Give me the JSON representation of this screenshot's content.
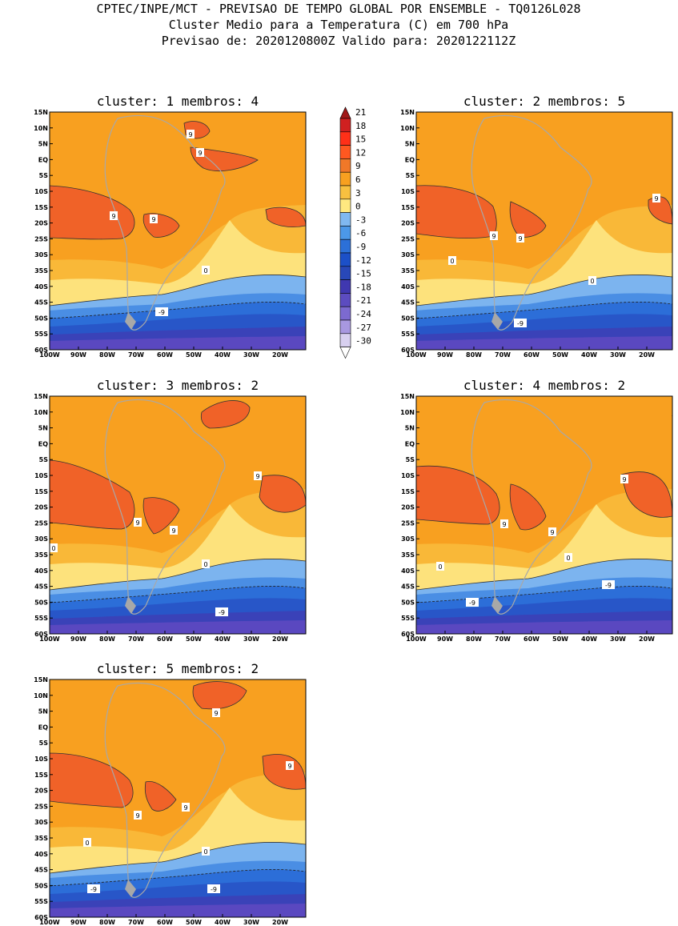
{
  "header": {
    "line1": "CPTEC/INPE/MCT - PREVISAO DE TEMPO GLOBAL POR ENSEMBLE - TQ0126L028",
    "line2": "Cluster Medio para a Temperatura (C) em 700 hPa",
    "line3": "Previsao de: 2020120800Z   Valido para: 2020122112Z"
  },
  "axes": {
    "lat_labels": [
      "15N",
      "10N",
      "5N",
      "EQ",
      "5S",
      "10S",
      "15S",
      "20S",
      "25S",
      "30S",
      "35S",
      "40S",
      "45S",
      "50S",
      "55S",
      "60S"
    ],
    "lon_labels": [
      "100W",
      "90W",
      "80W",
      "70W",
      "60W",
      "50W",
      "40W",
      "30W",
      "20W"
    ]
  },
  "colorbar": {
    "labels": [
      "21",
      "18",
      "15",
      "12",
      "9",
      "6",
      "3",
      "0",
      "-3",
      "-6",
      "-9",
      "-12",
      "-15",
      "-18",
      "-21",
      "-24",
      "-27",
      "-30"
    ],
    "colors": [
      "#a01818",
      "#d02020",
      "#ff3018",
      "#ff5820",
      "#f07828",
      "#f8a020",
      "#f8c040",
      "#ffe880",
      "#80b8f0",
      "#4c98e8",
      "#2c70d8",
      "#1c50c8",
      "#2848b8",
      "#4038b0",
      "#5c4cc0",
      "#7c6ad0",
      "#a898e0",
      "#d8d0f0"
    ],
    "band_colors": {
      "c12": "#f06228",
      "c9": "#f8a020",
      "c6": "#f9b838",
      "c3": "#fde27c",
      "cm3": "#7cb4ef",
      "cm6": "#4a8ee4",
      "cm9": "#2c6ed8",
      "cm12": "#2856c8",
      "cm15": "#3a42b8",
      "cm18": "#5a48c0",
      "warm": "#ff3018",
      "land": "#a8a8a8"
    }
  },
  "panels": [
    {
      "title": "cluster: 1   membros: 4",
      "contour_labels": [
        "9",
        "9",
        "9",
        "9",
        "0",
        "-9"
      ]
    },
    {
      "title": "cluster: 2   membros: 5",
      "contour_labels": [
        "9",
        "9",
        "9",
        "0",
        "0",
        "-9"
      ]
    },
    {
      "title": "cluster: 3   membros: 2",
      "contour_labels": [
        "9",
        "9",
        "9",
        "0",
        "0",
        "-9"
      ]
    },
    {
      "title": "cluster: 4   membros: 2",
      "contour_labels": [
        "9",
        "9",
        "9",
        "0",
        "0",
        "-9",
        "-9"
      ]
    },
    {
      "title": "cluster: 5   membros: 2",
      "contour_labels": [
        "9",
        "9",
        "9",
        "9",
        "0",
        "0",
        "-9",
        "-9"
      ]
    }
  ]
}
